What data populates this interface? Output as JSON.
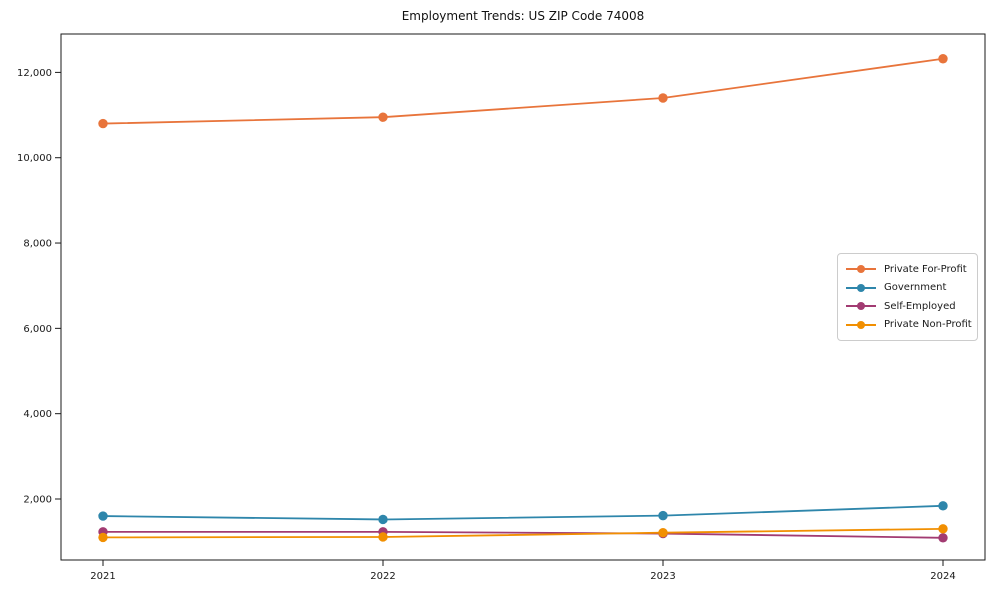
{
  "chart_data": {
    "type": "line",
    "title": "Employment Trends: US ZIP Code 74008",
    "x": [
      2021,
      2022,
      2023,
      2024
    ],
    "x_tick_labels": [
      "2021",
      "2022",
      "2023",
      "2024"
    ],
    "series": [
      {
        "name": "Private For-Profit",
        "color": "#E8743B",
        "values": [
          10800,
          10950,
          11400,
          12320
        ]
      },
      {
        "name": "Government",
        "color": "#2E86AB",
        "values": [
          1600,
          1520,
          1610,
          1840
        ]
      },
      {
        "name": "Self-Employed",
        "color": "#A23B72",
        "values": [
          1230,
          1230,
          1190,
          1090
        ]
      },
      {
        "name": "Private Non-Profit",
        "color": "#F18F01",
        "values": [
          1100,
          1110,
          1210,
          1300
        ]
      }
    ],
    "yticks": [
      2000,
      4000,
      6000,
      8000,
      10000,
      12000
    ],
    "ytick_labels": [
      "2,000",
      "4,000",
      "6,000",
      "8,000",
      "10,000",
      "12,000"
    ],
    "xlim": [
      2020.85,
      2024.15
    ],
    "ylim": [
      570,
      12900
    ],
    "grid": false,
    "legend_position": "center-right",
    "xlabel": "",
    "ylabel": "",
    "frame_color": "#1a1a1a",
    "tick_color": "#1a1a1a"
  }
}
